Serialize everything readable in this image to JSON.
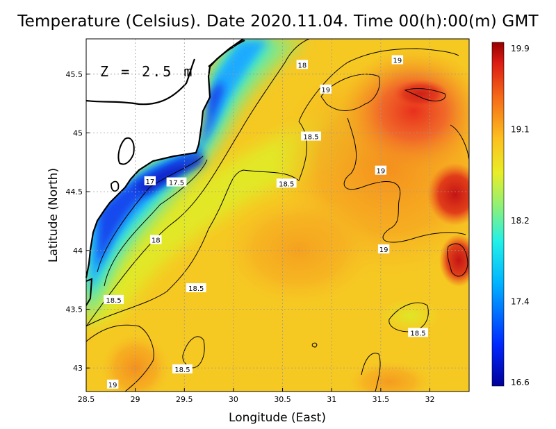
{
  "title": "Temperature (Celsius). Date 2020.11.04. Time 00(h):00(m) GMT",
  "depth_label": "Z = 2.5 m",
  "axes": {
    "xlabel": "Longitude (East)",
    "ylabel": "Latitude (North)",
    "xlim": [
      28.5,
      32.4
    ],
    "ylim": [
      42.8,
      45.8
    ],
    "xticks": [
      {
        "v": 28.5,
        "label": "28.5"
      },
      {
        "v": 29,
        "label": "29"
      },
      {
        "v": 29.5,
        "label": "29.5"
      },
      {
        "v": 30,
        "label": "30"
      },
      {
        "v": 30.5,
        "label": "30.5"
      },
      {
        "v": 31,
        "label": "31"
      },
      {
        "v": 31.5,
        "label": "31.5"
      },
      {
        "v": 32,
        "label": "32"
      }
    ],
    "yticks": [
      {
        "v": 43,
        "label": "43"
      },
      {
        "v": 43.5,
        "label": "43.5"
      },
      {
        "v": 44,
        "label": "44"
      },
      {
        "v": 44.5,
        "label": "44.5"
      },
      {
        "v": 45,
        "label": "45"
      },
      {
        "v": 45.5,
        "label": "45.5"
      }
    ]
  },
  "colorbar": {
    "min": 16.6,
    "max": 19.9,
    "ticks": [
      {
        "v": 19.9,
        "label": "19.9"
      },
      {
        "v": 19.1,
        "label": "19.1"
      },
      {
        "v": 18.2,
        "label": "18.2"
      },
      {
        "v": 17.4,
        "label": "17.4"
      },
      {
        "v": 16.6,
        "label": "16.6"
      }
    ]
  },
  "contour_labels": [
    {
      "text": "17",
      "lon": 29.15,
      "lat": 44.59
    },
    {
      "text": "17.5",
      "lon": 29.42,
      "lat": 44.58
    },
    {
      "text": "18",
      "lon": 30.7,
      "lat": 45.58
    },
    {
      "text": "18",
      "lon": 29.21,
      "lat": 44.09
    },
    {
      "text": "18.5",
      "lon": 30.79,
      "lat": 44.97
    },
    {
      "text": "18.5",
      "lon": 30.54,
      "lat": 44.57
    },
    {
      "text": "18.5",
      "lon": 29.62,
      "lat": 43.68
    },
    {
      "text": "18.5",
      "lon": 28.78,
      "lat": 43.58
    },
    {
      "text": "18.5",
      "lon": 31.88,
      "lat": 43.3
    },
    {
      "text": "18.5",
      "lon": 29.48,
      "lat": 42.99
    },
    {
      "text": "19",
      "lon": 31.67,
      "lat": 45.62
    },
    {
      "text": "19",
      "lon": 30.94,
      "lat": 45.37
    },
    {
      "text": "19",
      "lon": 31.5,
      "lat": 44.68
    },
    {
      "text": "19",
      "lon": 31.53,
      "lat": 44.01
    },
    {
      "text": "19",
      "lon": 28.77,
      "lat": 42.86
    }
  ],
  "colors": {
    "land": "#ffffff",
    "coastline": "#000000",
    "contour": "#000000",
    "grid": "#9a9a9a"
  }
}
